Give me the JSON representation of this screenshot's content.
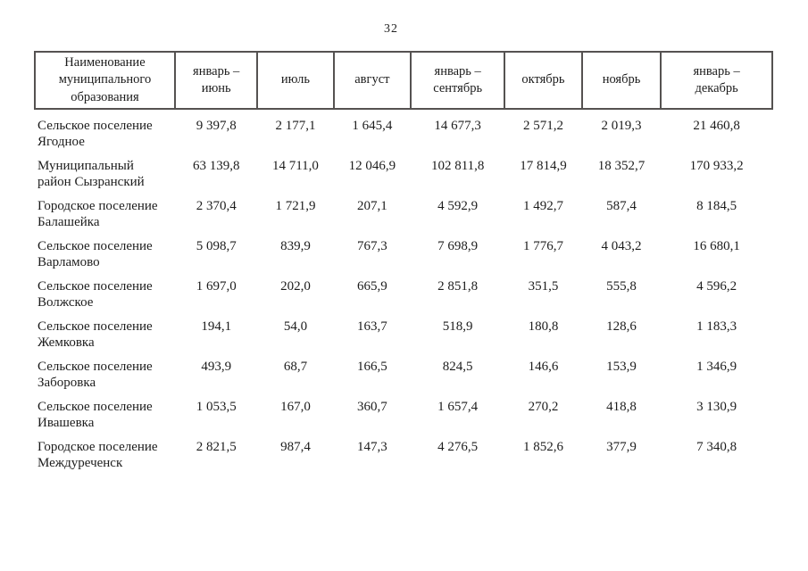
{
  "page": {
    "number": "32"
  },
  "table": {
    "columns": [
      {
        "label": "Наименование\nмуниципального\nобразования"
      },
      {
        "label": "январь –\nиюнь"
      },
      {
        "label": "июль"
      },
      {
        "label": "август"
      },
      {
        "label": "январь –\nсентябрь"
      },
      {
        "label": "октябрь"
      },
      {
        "label": "ноябрь"
      },
      {
        "label": "январь –\nдекабрь"
      }
    ],
    "rows": [
      {
        "name": "Сельское поселение\nЯгодное",
        "values": [
          "9 397,8",
          "2 177,1",
          "1 645,4",
          "14 677,3",
          "2 571,2",
          "2 019,3",
          "21 460,8"
        ]
      },
      {
        "name": "Муниципальный\nрайон Сызранский",
        "values": [
          "63 139,8",
          "14 711,0",
          "12 046,9",
          "102 811,8",
          "17 814,9",
          "18 352,7",
          "170 933,2"
        ]
      },
      {
        "name": "Городское поселение\nБалашейка",
        "values": [
          "2 370,4",
          "1 721,9",
          "207,1",
          "4 592,9",
          "1 492,7",
          "587,4",
          "8 184,5"
        ]
      },
      {
        "name": "Сельское поселение\nВарламово",
        "values": [
          "5 098,7",
          "839,9",
          "767,3",
          "7 698,9",
          "1 776,7",
          "4 043,2",
          "16 680,1"
        ]
      },
      {
        "name": "Сельское поселение\nВолжское",
        "values": [
          "1 697,0",
          "202,0",
          "665,9",
          "2 851,8",
          "351,5",
          "555,8",
          "4 596,2"
        ]
      },
      {
        "name": "Сельское поселение\nЖемковка",
        "values": [
          "194,1",
          "54,0",
          "163,7",
          "518,9",
          "180,8",
          "128,6",
          "1 183,3"
        ]
      },
      {
        "name": "Сельское поселение\nЗаборовка",
        "values": [
          "493,9",
          "68,7",
          "166,5",
          "824,5",
          "146,6",
          "153,9",
          "1 346,9"
        ]
      },
      {
        "name": "Сельское поселение\nИвашевка",
        "values": [
          "1 053,5",
          "167,0",
          "360,7",
          "1 657,4",
          "270,2",
          "418,8",
          "3 130,9"
        ]
      },
      {
        "name": "Городское поселение\nМеждуреченск",
        "values": [
          "2 821,5",
          "987,4",
          "147,3",
          "4 276,5",
          "1 852,6",
          "377,9",
          "7 340,8"
        ]
      }
    ]
  }
}
